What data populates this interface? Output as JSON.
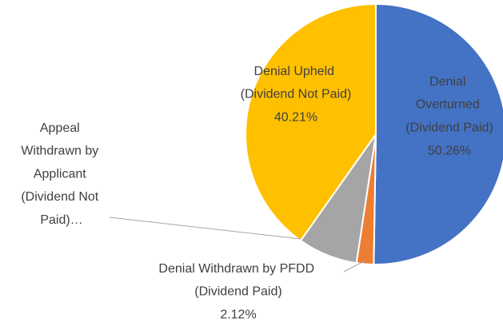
{
  "chart_data": {
    "type": "pie",
    "categories": [
      "Denial Overturned (Dividend Paid)",
      "Denial Withdrawn by PFDD (Dividend Paid)",
      "Appeal Withdrawn by Applicant (Dividend Not Paid)…",
      "Denial Upheld (Dividend Not Paid)"
    ],
    "values": [
      50.26,
      2.12,
      7.41,
      40.21
    ],
    "value_labels": [
      "50.26%",
      "2.12%",
      null,
      "40.21%"
    ],
    "colors": [
      "#4472c4",
      "#ed7d31",
      "#a5a5a5",
      "#ffc000"
    ]
  }
}
